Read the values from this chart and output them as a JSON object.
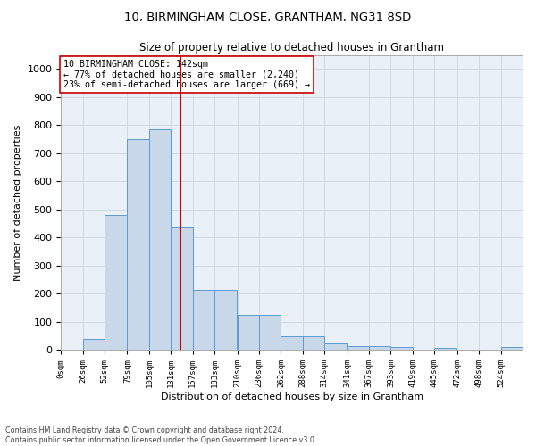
{
  "title": "10, BIRMINGHAM CLOSE, GRANTHAM, NG31 8SD",
  "subtitle": "Size of property relative to detached houses in Grantham",
  "xlabel": "Distribution of detached houses by size in Grantham",
  "ylabel": "Number of detached properties",
  "bin_labels": [
    "0sqm",
    "26sqm",
    "52sqm",
    "79sqm",
    "105sqm",
    "131sqm",
    "157sqm",
    "183sqm",
    "210sqm",
    "236sqm",
    "262sqm",
    "288sqm",
    "314sqm",
    "341sqm",
    "367sqm",
    "393sqm",
    "419sqm",
    "445sqm",
    "472sqm",
    "498sqm",
    "524sqm"
  ],
  "bin_edges": [
    0,
    26,
    52,
    79,
    105,
    131,
    157,
    183,
    210,
    236,
    262,
    288,
    314,
    341,
    367,
    393,
    419,
    445,
    472,
    498,
    524
  ],
  "bar_heights": [
    0,
    40,
    480,
    750,
    785,
    435,
    215,
    215,
    125,
    125,
    50,
    50,
    25,
    15,
    15,
    10,
    0,
    8,
    0,
    0,
    10
  ],
  "bar_color": "#c8d8e8",
  "bar_edge_color": "#5b9bd5",
  "property_size": 142,
  "red_line_color": "#cc0000",
  "annotation_line1": "10 BIRMINGHAM CLOSE: 142sqm",
  "annotation_line2": "← 77% of detached houses are smaller (2,240)",
  "annotation_line3": "23% of semi-detached houses are larger (669) →",
  "annotation_box_color": "#ffffff",
  "annotation_box_edge": "#cc0000",
  "ylim": [
    0,
    1050
  ],
  "yticks": [
    0,
    100,
    200,
    300,
    400,
    500,
    600,
    700,
    800,
    900,
    1000
  ],
  "grid_color": "#d0d8e4",
  "background_color": "#eaf0f8",
  "footer_line1": "Contains HM Land Registry data © Crown copyright and database right 2024.",
  "footer_line2": "Contains public sector information licensed under the Open Government Licence v3.0."
}
